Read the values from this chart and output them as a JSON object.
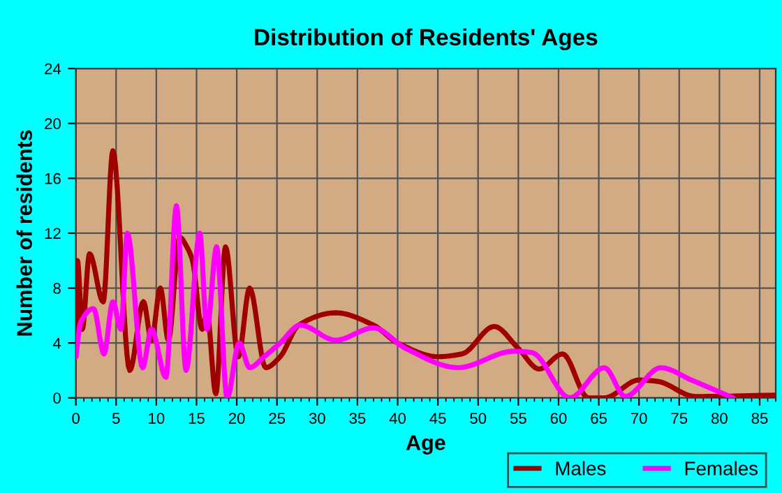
{
  "chart_data": {
    "type": "line",
    "title": "Distribution of Residents' Ages",
    "xlabel": "Age",
    "ylabel": "Number of residents",
    "xlim": [
      0,
      87
    ],
    "xticks": [
      0,
      5,
      10,
      15,
      20,
      25,
      30,
      35,
      40,
      45,
      50,
      55,
      60,
      65,
      70,
      75,
      80,
      85
    ],
    "ylim": [
      0,
      24
    ],
    "yticks": [
      0,
      4,
      8,
      12,
      16,
      20,
      24
    ],
    "grid": true,
    "legend": "bottom right",
    "marker": "none",
    "line_style": "solid",
    "series": [
      {
        "name": "Males",
        "color": "#a00000",
        "x": [
          0,
          0.2,
          0.8,
          1.7,
          3.4,
          4.6,
          6.7,
          8.4,
          9.4,
          10.5,
          11.5,
          12.9,
          13.8,
          14.5,
          15.7,
          16.3,
          17.4,
          18.6,
          20.2,
          21.6,
          23.6,
          25.4,
          27.7,
          32.3,
          37,
          40,
          45,
          48,
          52,
          55,
          57.6,
          60.5,
          63.7,
          65.7,
          70,
          72.3,
          77,
          87
        ],
        "values": [
          3,
          10,
          5,
          10.5,
          7,
          18,
          2,
          7,
          4.2,
          8,
          4.2,
          11.7,
          11,
          10,
          5,
          6.2,
          0.3,
          11,
          3,
          8,
          2.2,
          3,
          5.3,
          6.2,
          5.3,
          4,
          3,
          3.2,
          5.2,
          3.6,
          2.1,
          3.2,
          0,
          0,
          1.3,
          1.2,
          0.1,
          0.2
        ]
      },
      {
        "name": "Females",
        "color": "#ff00ff",
        "x": [
          0,
          0.6,
          2.2,
          3.5,
          4.6,
          5.6,
          6.4,
          8.3,
          9.4,
          11.2,
          12.5,
          13.7,
          15.4,
          16.3,
          17.5,
          18.8,
          20.3,
          21.6,
          23.4,
          25.4,
          27.9,
          32.3,
          37,
          41,
          47.5,
          54.4,
          56.7,
          61.4,
          65.7,
          68.3,
          72.7,
          76.5,
          81.7
        ],
        "values": [
          3,
          5.5,
          6.5,
          3.2,
          7,
          5,
          12,
          2.2,
          5,
          1.5,
          14,
          2,
          12,
          5,
          11,
          0,
          4,
          2.2,
          3,
          4,
          5.3,
          4.2,
          5.1,
          3.6,
          2.2,
          3.4,
          3.3,
          0,
          2.2,
          0.1,
          2.2,
          1.3,
          0
        ]
      }
    ]
  }
}
